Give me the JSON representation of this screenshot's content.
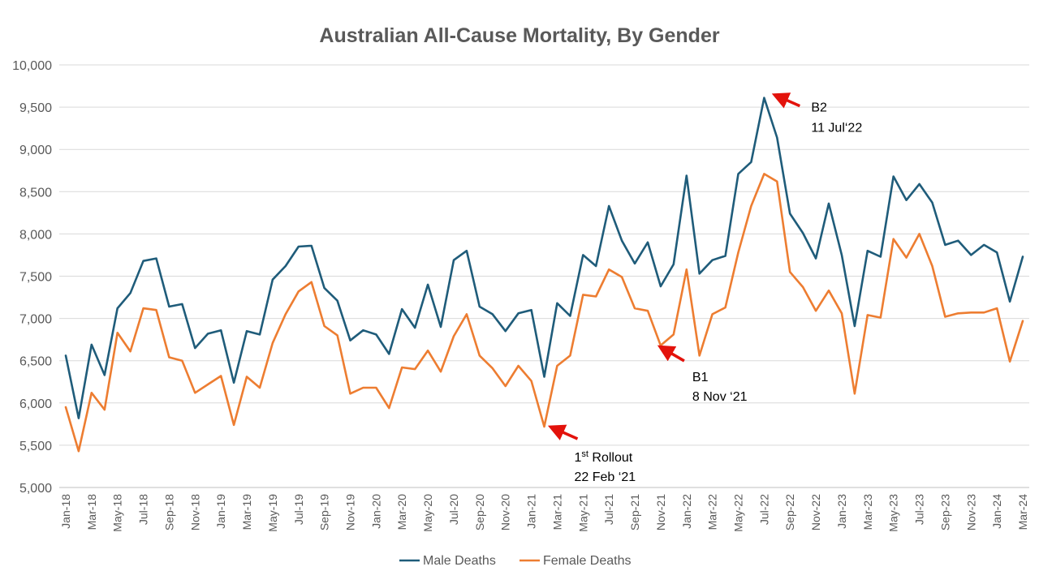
{
  "chart_data": {
    "type": "line",
    "title": "Australian All-Cause Mortality, By Gender",
    "xlabel": "",
    "ylabel": "",
    "ylim": [
      5000,
      10000
    ],
    "y_ticks": [
      "5,000",
      "5,500",
      "6,000",
      "6,500",
      "7,000",
      "7,500",
      "8,000",
      "8,500",
      "9,000",
      "9,500",
      "10,000"
    ],
    "grid": true,
    "legend_position": "bottom",
    "x": [
      "Jan-18",
      "Feb-18",
      "Mar-18",
      "Apr-18",
      "May-18",
      "Jun-18",
      "Jul-18",
      "Aug-18",
      "Sep-18",
      "Oct-18",
      "Nov-18",
      "Dec-18",
      "Jan-19",
      "Feb-19",
      "Mar-19",
      "Apr-19",
      "May-19",
      "Jun-19",
      "Jul-19",
      "Aug-19",
      "Sep-19",
      "Oct-19",
      "Nov-19",
      "Dec-19",
      "Jan-20",
      "Feb-20",
      "Mar-20",
      "Apr-20",
      "May-20",
      "Jun-20",
      "Jul-20",
      "Aug-20",
      "Sep-20",
      "Oct-20",
      "Nov-20",
      "Dec-20",
      "Jan-21",
      "Feb-21",
      "Mar-21",
      "Apr-21",
      "May-21",
      "Jun-21",
      "Jul-21",
      "Aug-21",
      "Sep-21",
      "Oct-21",
      "Nov-21",
      "Dec-21",
      "Jan-22",
      "Feb-22",
      "Mar-22",
      "Apr-22",
      "May-22",
      "Jun-22",
      "Jul-22",
      "Aug-22",
      "Sep-22",
      "Oct-22",
      "Nov-22",
      "Dec-22",
      "Jan-23",
      "Feb-23",
      "Mar-23",
      "Apr-23",
      "May-23",
      "Jun-23",
      "Jul-23",
      "Aug-23",
      "Sep-23",
      "Oct-23",
      "Nov-23",
      "Dec-23",
      "Jan-24",
      "Feb-24",
      "Mar-24"
    ],
    "x_tick_labels": [
      "Jan-18",
      "Mar-18",
      "May-18",
      "Jul-18",
      "Sep-18",
      "Nov-18",
      "Jan-19",
      "Mar-19",
      "May-19",
      "Jul-19",
      "Sep-19",
      "Nov-19",
      "Jan-20",
      "Mar-20",
      "May-20",
      "Jul-20",
      "Sep-20",
      "Nov-20",
      "Jan-21",
      "Mar-21",
      "May-21",
      "Jul-21",
      "Sep-21",
      "Nov-21",
      "Jan-22",
      "Mar-22",
      "May-22",
      "Jul-22",
      "Sep-22",
      "Nov-22",
      "Jan-23",
      "Mar-23",
      "May-23",
      "Jul-23",
      "Sep-23",
      "Nov-23",
      "Jan-24",
      "Mar-24"
    ],
    "series": [
      {
        "name": "Male Deaths",
        "color": "#1f5c7a",
        "values": [
          6560,
          5820,
          6690,
          6330,
          7120,
          7300,
          7680,
          7710,
          7140,
          7170,
          6650,
          6820,
          6860,
          6240,
          6850,
          6810,
          7460,
          7620,
          7850,
          7860,
          7360,
          7210,
          6740,
          6860,
          6810,
          6580,
          7110,
          6890,
          7400,
          6900,
          7690,
          7800,
          7140,
          7050,
          6850,
          7060,
          7100,
          6310,
          7180,
          7030,
          7750,
          7620,
          8330,
          7920,
          7650,
          7900,
          7380,
          7640,
          8690,
          7530,
          7690,
          7740,
          8710,
          8850,
          9610,
          9140,
          8240,
          8010,
          7710,
          8360,
          7750,
          6910,
          7800,
          7730,
          8680,
          8400,
          8590,
          8370,
          7870,
          7920,
          7750,
          7870,
          7780,
          7200,
          7730
        ]
      },
      {
        "name": "Female Deaths",
        "color": "#ed7d31",
        "values": [
          5950,
          5430,
          6120,
          5920,
          6830,
          6610,
          7120,
          7100,
          6540,
          6500,
          6120,
          6220,
          6320,
          5740,
          6310,
          6180,
          6710,
          7050,
          7320,
          7430,
          6910,
          6800,
          6110,
          6180,
          6180,
          5940,
          6420,
          6400,
          6620,
          6370,
          6790,
          7050,
          6560,
          6410,
          6200,
          6440,
          6260,
          5720,
          6440,
          6560,
          7280,
          7260,
          7580,
          7490,
          7120,
          7090,
          6680,
          6810,
          7580,
          6560,
          7050,
          7130,
          7780,
          8330,
          8710,
          8620,
          7550,
          7370,
          7090,
          7330,
          7060,
          6110,
          7040,
          7010,
          7940,
          7720,
          8000,
          7620,
          7020,
          7060,
          7070,
          7070,
          7120,
          6490,
          6970
        ]
      }
    ],
    "annotations": [
      {
        "label_line1": "1",
        "label_sup": "st",
        "label_line1_rest": " Rollout",
        "label_line2": "22 Feb ‘21",
        "at": "Feb-21"
      },
      {
        "label_line1": "B1",
        "label_line2": "8 Nov ‘21",
        "at": "Nov-21"
      },
      {
        "label_line1": "B2",
        "label_line2": "11 Jul‘22",
        "at": "Jul-22"
      }
    ],
    "arrow_color": "#e3120b"
  }
}
